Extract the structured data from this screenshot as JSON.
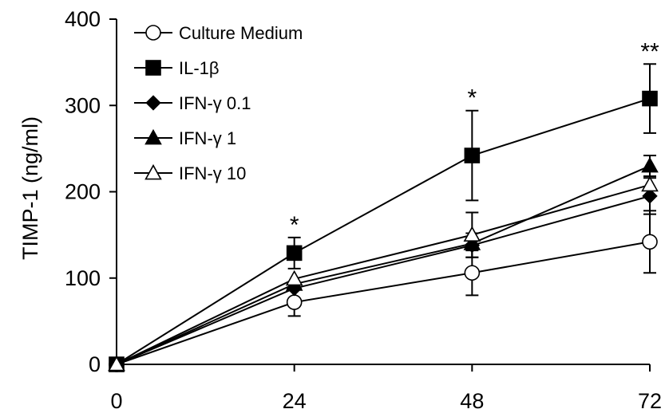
{
  "chart_data": {
    "type": "line",
    "title": "",
    "xlabel": "",
    "ylabel": "TIMP-1 (ng/ml)",
    "x": [
      0,
      24,
      48,
      72
    ],
    "xticks": [
      "0",
      "24",
      "48",
      "72"
    ],
    "yticks": [
      "0",
      "100",
      "200",
      "300",
      "400"
    ],
    "xlim": [
      0,
      72
    ],
    "ylim": [
      0,
      400
    ],
    "grid": false,
    "legend_position": "top-left",
    "series": [
      {
        "name": "Culture Medium",
        "marker": "circle-open",
        "values": [
          0,
          72,
          106,
          142
        ],
        "errors": [
          0,
          16,
          26,
          36
        ]
      },
      {
        "name": "IL-1β",
        "marker": "square-filled",
        "values": [
          0,
          129,
          242,
          308
        ],
        "errors": [
          0,
          18,
          52,
          40
        ]
      },
      {
        "name": "IFN-γ 0.1",
        "marker": "diamond-filled",
        "values": [
          0,
          88,
          138,
          195
        ],
        "errors": [
          0,
          0,
          14,
          21
        ]
      },
      {
        "name": "IFN-γ 1",
        "marker": "triangle-filled",
        "values": [
          0,
          93,
          140,
          230
        ],
        "errors": [
          0,
          0,
          0,
          12
        ]
      },
      {
        "name": "IFN-γ 10",
        "marker": "triangle-open",
        "values": [
          0,
          99,
          150,
          208
        ],
        "errors": [
          0,
          0,
          26,
          0
        ]
      }
    ],
    "annotations": [
      {
        "x": 24,
        "text": "*"
      },
      {
        "x": 48,
        "text": "*"
      },
      {
        "x": 72,
        "text": "**"
      }
    ]
  }
}
